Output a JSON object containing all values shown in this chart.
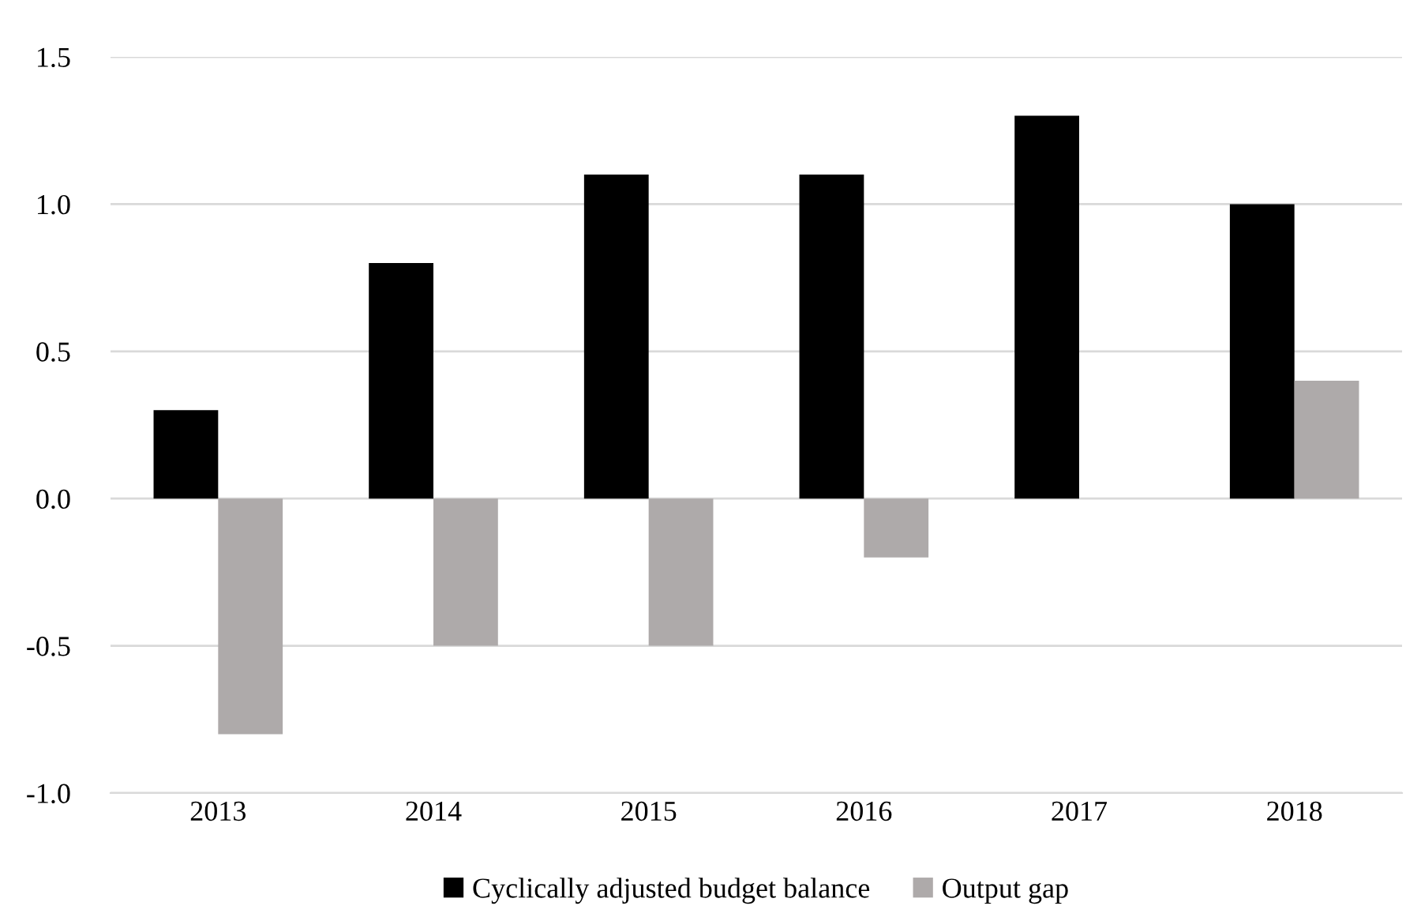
{
  "chart_data": {
    "type": "bar",
    "categories": [
      "2013",
      "2014",
      "2015",
      "2016",
      "2017",
      "2018"
    ],
    "series": [
      {
        "name": "Cyclically adjusted budget balance",
        "color": "#000000",
        "values": [
          0.3,
          0.8,
          1.1,
          1.1,
          1.3,
          1.0
        ]
      },
      {
        "name": "Output gap",
        "color": "#aeaaaa",
        "values": [
          -0.8,
          -0.5,
          -0.5,
          -0.2,
          0.0,
          0.4
        ]
      }
    ],
    "ylim": [
      -1.0,
      1.5
    ],
    "yticks": [
      {
        "value": -1.0,
        "label": "-1.0"
      },
      {
        "value": -0.5,
        "label": "-0.5"
      },
      {
        "value": 0.0,
        "label": "0.0"
      },
      {
        "value": 0.5,
        "label": "0.5"
      },
      {
        "value": 1.0,
        "label": "1.0"
      },
      {
        "value": 1.5,
        "label": "1.5"
      }
    ],
    "grid": "y",
    "legend": "bottom"
  }
}
